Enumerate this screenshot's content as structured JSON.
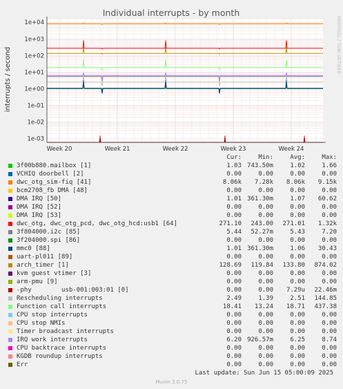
{
  "chart_data": {
    "type": "line",
    "title": "Individual interrupts - by month",
    "ylabel": "interrupts / second",
    "yscale": "log",
    "ylim": [
      0.0006,
      15000
    ],
    "y_ticks": [
      "1e-03",
      "1e-02",
      "1e-01",
      "1e+00",
      "1e+01",
      "1e+02",
      "1e+03",
      "1e+04"
    ],
    "x_ticks": [
      "Week 20",
      "Week 21",
      "Week 22",
      "Week 23",
      "Week 24"
    ],
    "watermark": "RRDTOOL / TOBI OETIKER",
    "grid": true,
    "legend_placement": "below",
    "columns": {
      "cur": "Cur:",
      "min": "Min:",
      "avg": "Avg:",
      "max": "Max:"
    },
    "series": [
      {
        "name": "3f00b880.mailbox [1]",
        "color": "#00cc00",
        "cur": "1.03",
        "min": "743.50m",
        "avg": "1.02",
        "max": "1.66"
      },
      {
        "name": "VCHIQ doorbell [2]",
        "color": "#0066b3",
        "cur": "0.00",
        "min": "0.00",
        "avg": "0.00",
        "max": "0.00"
      },
      {
        "name": "dwc_otg_sim-fiq [41]",
        "color": "#ff8000",
        "cur": "8.06k",
        "min": "7.28k",
        "avg": "8.06k",
        "max": "9.15k"
      },
      {
        "name": "bcm2708_fb DMA [48]",
        "color": "#ffcc00",
        "cur": "0.00",
        "min": "0.00",
        "avg": "0.00",
        "max": "0.00"
      },
      {
        "name": "DMA IRQ [50]",
        "color": "#330099",
        "cur": "1.01",
        "min": "361.30m",
        "avg": "1.07",
        "max": "60.62"
      },
      {
        "name": "DMA IRQ [52]",
        "color": "#990099",
        "cur": "0.00",
        "min": "0.00",
        "avg": "0.00",
        "max": "0.00"
      },
      {
        "name": "DMA IRQ [53]",
        "color": "#ccff00",
        "cur": "0.00",
        "min": "0.00",
        "avg": "0.00",
        "max": "0.00"
      },
      {
        "name": "dwc_otg, dwc_otg_pcd, dwc_otg_hcd:usb1 [64]",
        "color": "#ff0000",
        "cur": "271.10",
        "min": "243.00",
        "avg": "271.01",
        "max": "1.32k"
      },
      {
        "name": "3f804000.i2c [85]",
        "color": "#808080",
        "cur": "5.44",
        "min": "52.27m",
        "avg": "5.43",
        "max": "7.20"
      },
      {
        "name": "3f204000.spi [86]",
        "color": "#008f00",
        "cur": "0.00",
        "min": "0.00",
        "avg": "0.00",
        "max": "0.00"
      },
      {
        "name": "mmc0 [88]",
        "color": "#00487d",
        "cur": "1.01",
        "min": "361.30m",
        "avg": "1.06",
        "max": "30.43"
      },
      {
        "name": "uart-pl011 [89]",
        "color": "#b35a00",
        "cur": "0.00",
        "min": "0.00",
        "avg": "0.00",
        "max": "0.00"
      },
      {
        "name": "arch_timer [1]",
        "color": "#b38f00",
        "cur": "128.69",
        "min": "119.84",
        "avg": "133.80",
        "max": "874.02"
      },
      {
        "name": "kvm guest vtimer [3]",
        "color": "#6b006b",
        "cur": "0.00",
        "min": "0.00",
        "avg": "0.00",
        "max": "0.00"
      },
      {
        "name": "arm-pmu [9]",
        "color": "#8fb300",
        "cur": "0.00",
        "min": "0.00",
        "avg": "0.00",
        "max": "0.00"
      },
      {
        "name": "-phy        usb-001:003:01 [0]",
        "color": "#b30000",
        "cur": "0.00",
        "min": "0.00",
        "avg": "7.29u",
        "max": "22.46m"
      },
      {
        "name": "Rescheduling interrupts",
        "color": "#bebebe",
        "cur": "2.49",
        "min": "1.39",
        "avg": "2.51",
        "max": "144.85"
      },
      {
        "name": "Function call interrupts",
        "color": "#80ff80",
        "cur": "18.41",
        "min": "13.24",
        "avg": "18.71",
        "max": "437.38"
      },
      {
        "name": "CPU stop interrupts",
        "color": "#80c9ff",
        "cur": "0.00",
        "min": "0.00",
        "avg": "0.00",
        "max": "0.00"
      },
      {
        "name": "CPU stop NMIs",
        "color": "#ffc080",
        "cur": "0.00",
        "min": "0.00",
        "avg": "0.00",
        "max": "0.00"
      },
      {
        "name": "Timer broadcast interrupts",
        "color": "#ffe680",
        "cur": "0.00",
        "min": "0.00",
        "avg": "0.00",
        "max": "0.00"
      },
      {
        "name": "IRQ work interrupts",
        "color": "#aa80ff",
        "cur": "6.20",
        "min": "926.57m",
        "avg": "6.25",
        "max": "8.74"
      },
      {
        "name": "CPU backtrace interrupts",
        "color": "#ee00cc",
        "cur": "0.00",
        "min": "0.00",
        "avg": "0.00",
        "max": "0.00"
      },
      {
        "name": "KGDB roundup interrupts",
        "color": "#ff8080",
        "cur": "0.00",
        "min": "0.00",
        "avg": "0.00",
        "max": "0.00"
      },
      {
        "name": "Err",
        "color": "#666600",
        "cur": "0.00",
        "min": "0.00",
        "avg": "0.00",
        "max": "0.00"
      }
    ]
  },
  "footer": {
    "last_update": "Last update: Sun Jun 15 05:00:09 2025",
    "munin_version": "Munin 2.0.75"
  }
}
